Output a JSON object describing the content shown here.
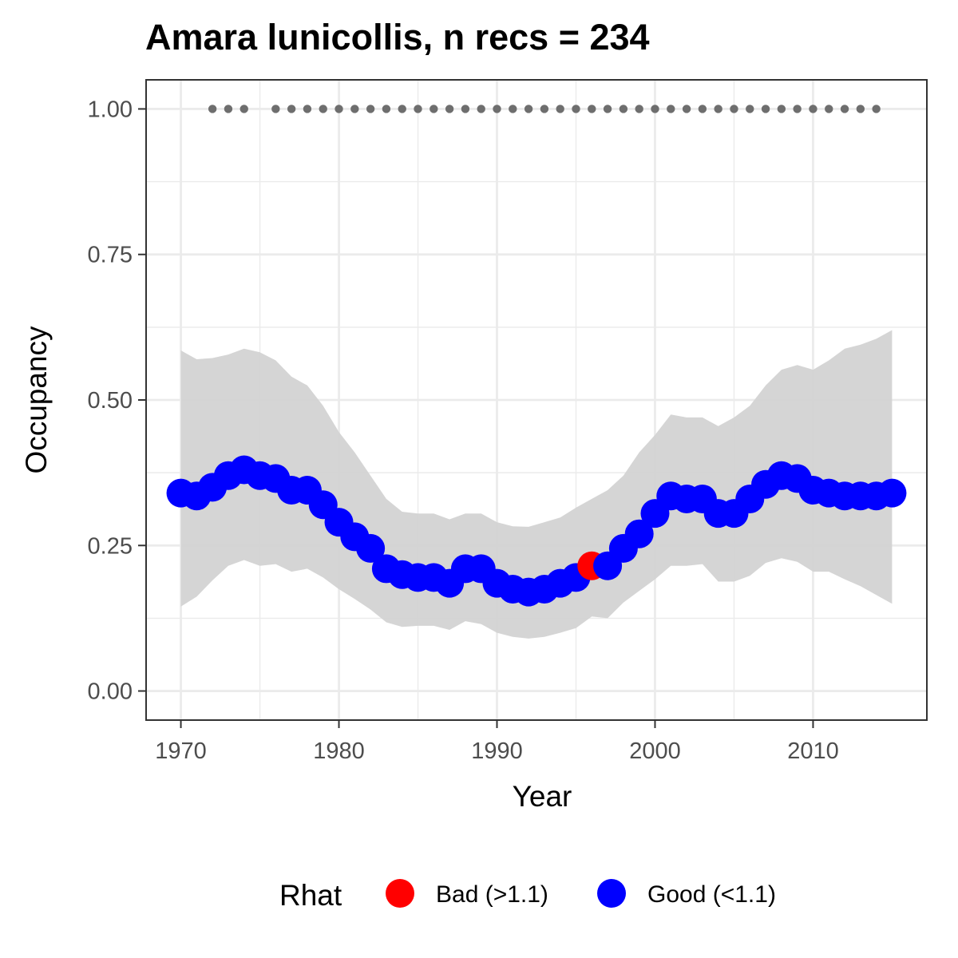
{
  "chart_data": {
    "type": "line",
    "title": "Amara lunicollis, n recs = 234",
    "xlabel": "Year",
    "ylabel": "Occupancy",
    "xlim": [
      1967.8,
      2017.2
    ],
    "ylim": [
      -0.05,
      1.05
    ],
    "x_ticks": [
      1970,
      1980,
      1990,
      2000,
      2010
    ],
    "x_tick_labels": [
      "1970",
      "1980",
      "1990",
      "2000",
      "2010"
    ],
    "y_ticks": [
      0,
      0.25,
      0.5,
      0.75,
      1.0
    ],
    "y_tick_labels": [
      "0.00",
      "0.25",
      "0.50",
      "0.75",
      "1.00"
    ],
    "grid": true,
    "legend_position": "bottom",
    "legend": {
      "title": "Rhat",
      "items": [
        {
          "label": "Bad (>1.1)",
          "color": "#ff0000"
        },
        {
          "label": "Good (<1.1)",
          "color": "#0000ff"
        }
      ]
    },
    "colors": {
      "ribbon": "#d3d3d3",
      "record_dots": "#6e6e6e",
      "bad": "#ff0000",
      "good": "#0000ff"
    },
    "series": [
      {
        "kind": "mean",
        "x": [
          1970,
          1971,
          1972,
          1973,
          1974,
          1975,
          1976,
          1977,
          1978,
          1979,
          1980,
          1981,
          1982,
          1983,
          1984,
          1985,
          1986,
          1987,
          1988,
          1989,
          1990,
          1991,
          1992,
          1993,
          1994,
          1995,
          1996,
          1997,
          1998,
          1999,
          2000,
          2001,
          2002,
          2003,
          2004,
          2005,
          2006,
          2007,
          2008,
          2009,
          2010,
          2011,
          2012,
          2013,
          2014,
          2015
        ],
        "y": [
          0.34,
          0.335,
          0.35,
          0.37,
          0.38,
          0.37,
          0.365,
          0.345,
          0.345,
          0.32,
          0.29,
          0.265,
          0.245,
          0.21,
          0.2,
          0.195,
          0.195,
          0.185,
          0.21,
          0.21,
          0.185,
          0.175,
          0.17,
          0.175,
          0.185,
          0.195,
          0.215,
          0.215,
          0.245,
          0.27,
          0.305,
          0.335,
          0.33,
          0.33,
          0.305,
          0.305,
          0.33,
          0.355,
          0.37,
          0.365,
          0.345,
          0.34,
          0.335,
          0.335,
          0.335,
          0.34
        ],
        "rhat": [
          "Good",
          "Good",
          "Good",
          "Good",
          "Good",
          "Good",
          "Good",
          "Good",
          "Good",
          "Good",
          "Good",
          "Good",
          "Good",
          "Good",
          "Good",
          "Good",
          "Good",
          "Good",
          "Good",
          "Good",
          "Good",
          "Good",
          "Good",
          "Good",
          "Good",
          "Good",
          "Bad",
          "Good",
          "Good",
          "Good",
          "Good",
          "Good",
          "Good",
          "Good",
          "Good",
          "Good",
          "Good",
          "Good",
          "Good",
          "Good",
          "Good",
          "Good",
          "Good",
          "Good",
          "Good",
          "Good"
        ]
      },
      {
        "kind": "upper_ci",
        "x": [
          1970,
          1971,
          1972,
          1973,
          1974,
          1975,
          1976,
          1977,
          1978,
          1979,
          1980,
          1981,
          1982,
          1983,
          1984,
          1985,
          1986,
          1987,
          1988,
          1989,
          1990,
          1991,
          1992,
          1993,
          1994,
          1995,
          1996,
          1997,
          1998,
          1999,
          2000,
          2001,
          2002,
          2003,
          2004,
          2005,
          2006,
          2007,
          2008,
          2009,
          2010,
          2011,
          2012,
          2013,
          2014,
          2015
        ],
        "y": [
          0.585,
          0.57,
          0.572,
          0.578,
          0.588,
          0.582,
          0.568,
          0.54,
          0.525,
          0.49,
          0.445,
          0.41,
          0.37,
          0.33,
          0.308,
          0.305,
          0.305,
          0.295,
          0.305,
          0.305,
          0.29,
          0.283,
          0.282,
          0.29,
          0.298,
          0.315,
          0.33,
          0.345,
          0.37,
          0.41,
          0.44,
          0.475,
          0.47,
          0.47,
          0.455,
          0.47,
          0.49,
          0.525,
          0.552,
          0.56,
          0.552,
          0.568,
          0.588,
          0.595,
          0.605,
          0.62
        ]
      },
      {
        "kind": "lower_ci",
        "x": [
          1970,
          1971,
          1972,
          1973,
          1974,
          1975,
          1976,
          1977,
          1978,
          1979,
          1980,
          1981,
          1982,
          1983,
          1984,
          1985,
          1986,
          1987,
          1988,
          1989,
          1990,
          1991,
          1992,
          1993,
          1994,
          1995,
          1996,
          1997,
          1998,
          1999,
          2000,
          2001,
          2002,
          2003,
          2004,
          2005,
          2006,
          2007,
          2008,
          2009,
          2010,
          2011,
          2012,
          2013,
          2014,
          2015
        ],
        "y": [
          0.145,
          0.162,
          0.19,
          0.215,
          0.225,
          0.215,
          0.218,
          0.205,
          0.21,
          0.195,
          0.175,
          0.158,
          0.14,
          0.118,
          0.11,
          0.112,
          0.112,
          0.105,
          0.12,
          0.115,
          0.1,
          0.093,
          0.09,
          0.093,
          0.1,
          0.108,
          0.128,
          0.125,
          0.152,
          0.172,
          0.192,
          0.215,
          0.215,
          0.218,
          0.188,
          0.188,
          0.198,
          0.22,
          0.228,
          0.222,
          0.205,
          0.205,
          0.192,
          0.18,
          0.165,
          0.15
        ]
      },
      {
        "kind": "records",
        "x": [
          1972,
          1973,
          1974,
          1976,
          1977,
          1978,
          1979,
          1980,
          1981,
          1982,
          1983,
          1984,
          1985,
          1986,
          1987,
          1988,
          1989,
          1990,
          1991,
          1992,
          1993,
          1994,
          1995,
          1996,
          1997,
          1998,
          1999,
          2000,
          2001,
          2002,
          2003,
          2004,
          2005,
          2006,
          2007,
          2008,
          2009,
          2010,
          2011,
          2012,
          2013,
          2014
        ],
        "y": 1.0
      }
    ]
  }
}
